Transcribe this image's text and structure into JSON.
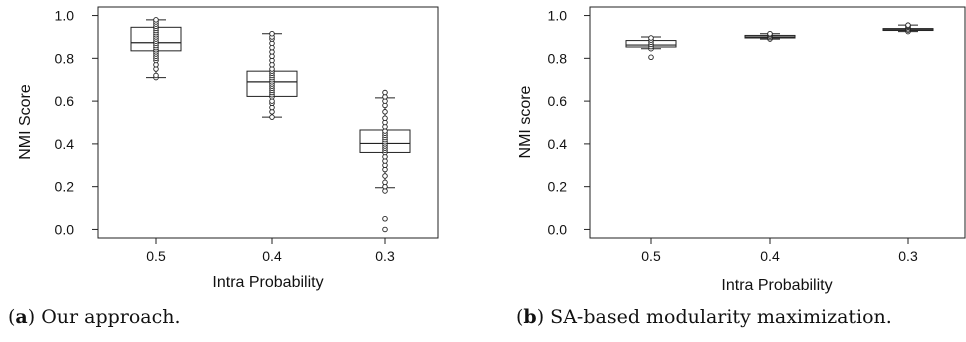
{
  "chart_data": [
    {
      "type": "boxplot",
      "panel_label": "a",
      "caption": "Our approach.",
      "xlabel": "Intra Probability",
      "ylabel": "NMI Score",
      "categories": [
        "0.5",
        "0.4",
        "0.3"
      ],
      "yticks": [
        0.0,
        0.2,
        0.4,
        0.6,
        0.8,
        1.0
      ],
      "ytick_labels": [
        "0.0",
        "0.2",
        "0.4",
        "0.6",
        "0.8",
        "1.0"
      ],
      "ylim": [
        -0.04,
        1.04
      ],
      "grid": false,
      "boxes": [
        {
          "category": "0.5",
          "whisker_low": 0.71,
          "q1": 0.835,
          "median": 0.873,
          "q3": 0.945,
          "whisker_high": 0.98,
          "points": [
            0.71,
            0.72,
            0.75,
            0.77,
            0.79,
            0.8,
            0.81,
            0.82,
            0.83,
            0.84,
            0.85,
            0.86,
            0.87,
            0.88,
            0.89,
            0.9,
            0.91,
            0.92,
            0.93,
            0.94,
            0.95,
            0.96,
            0.97,
            0.98
          ]
        },
        {
          "category": "0.4",
          "whisker_low": 0.525,
          "q1": 0.622,
          "median": 0.69,
          "q3": 0.74,
          "whisker_high": 0.915,
          "points": [
            0.525,
            0.55,
            0.57,
            0.59,
            0.6,
            0.62,
            0.63,
            0.64,
            0.65,
            0.66,
            0.67,
            0.68,
            0.69,
            0.7,
            0.71,
            0.72,
            0.73,
            0.74,
            0.75,
            0.77,
            0.79,
            0.81,
            0.83,
            0.85,
            0.87,
            0.89,
            0.9,
            0.915
          ]
        },
        {
          "category": "0.3",
          "whisker_low": 0.195,
          "q1": 0.36,
          "median": 0.402,
          "q3": 0.465,
          "whisker_high": 0.615,
          "points": [
            0.0,
            0.05,
            0.18,
            0.2,
            0.22,
            0.25,
            0.28,
            0.3,
            0.32,
            0.34,
            0.36,
            0.37,
            0.38,
            0.39,
            0.4,
            0.41,
            0.42,
            0.43,
            0.44,
            0.45,
            0.46,
            0.48,
            0.5,
            0.52,
            0.55,
            0.58,
            0.6,
            0.62,
            0.64
          ]
        }
      ]
    },
    {
      "type": "boxplot",
      "panel_label": "b",
      "caption": "SA-based modularity maximization.",
      "xlabel": "Intra Probability",
      "ylabel": "NMI score",
      "categories": [
        "0.5",
        "0.4",
        "0.3"
      ],
      "yticks": [
        0.0,
        0.2,
        0.4,
        0.6,
        0.8,
        1.0
      ],
      "ytick_labels": [
        "0.0",
        "0.2",
        "0.4",
        "0.6",
        "0.8",
        "1.0"
      ],
      "ylim": [
        -0.04,
        1.04
      ],
      "grid": false,
      "boxes": [
        {
          "category": "0.5",
          "whisker_low": 0.845,
          "q1": 0.853,
          "median": 0.862,
          "q3": 0.883,
          "whisker_high": 0.9,
          "points": [
            0.805,
            0.845,
            0.855,
            0.865,
            0.875,
            0.885,
            0.895
          ]
        },
        {
          "category": "0.4",
          "whisker_low": 0.89,
          "q1": 0.895,
          "median": 0.9,
          "q3": 0.907,
          "whisker_high": 0.915,
          "points": [
            0.89,
            0.897,
            0.904,
            0.91,
            0.915
          ]
        },
        {
          "category": "0.3",
          "whisker_low": 0.925,
          "q1": 0.93,
          "median": 0.934,
          "q3": 0.939,
          "whisker_high": 0.955,
          "points": [
            0.925,
            0.932,
            0.938,
            0.945,
            0.95,
            0.955
          ]
        }
      ]
    }
  ]
}
